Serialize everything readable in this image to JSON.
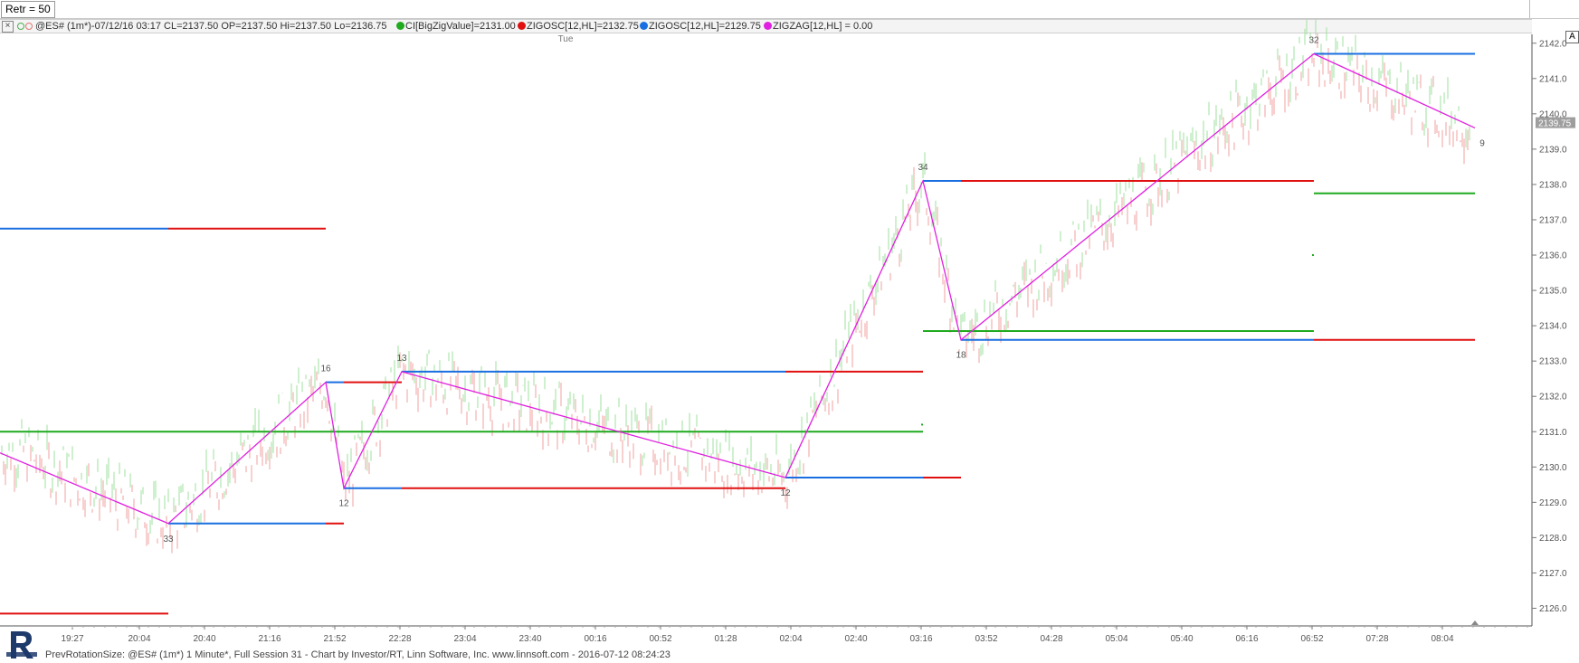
{
  "top": {
    "retr_label": "Retr = 50"
  },
  "legend": {
    "symbol": "@ES# (1m*)-07/12/16 03:17 CL=2137.50 OP=2137.50 Hi=2137.50 Lo=2136.75",
    "items": [
      {
        "text": "CI[BigZigValue]=2131.00",
        "color": "#1faa1f"
      },
      {
        "text": "ZIGOSC[12,HL]=2132.75",
        "color": "#e01010"
      },
      {
        "text": "ZIGOSC[12,HL]=2129.75",
        "color": "#1a6fe0"
      },
      {
        "text": "ZIGZAG[12,HL] = 0.00",
        "color": "#e020e0"
      }
    ]
  },
  "day_label": "Tue",
  "a_button": "A",
  "footer": "PrevRotationSize: @ES# (1m*) 1 Minute*, Full Session 31 - Chart by Investor/RT, Linn Software, Inc. www.linnsoft.com - 2016-07-12 08:24:23",
  "chart_data": {
    "type": "line",
    "ylim": [
      2125.5,
      2142.25
    ],
    "y_ticks": [
      2126.0,
      2127.0,
      2128.0,
      2129.0,
      2130.0,
      2131.0,
      2132.0,
      2133.0,
      2134.0,
      2135.0,
      2136.0,
      2137.0,
      2138.0,
      2139.0,
      2140.0,
      2141.0,
      2142.0
    ],
    "current_price": "2139.75",
    "x_ticks": [
      "19:27",
      "20:04",
      "20:40",
      "21:16",
      "21:52",
      "22:28",
      "23:04",
      "23:40",
      "00:16",
      "00:52",
      "01:28",
      "02:04",
      "02:40",
      "03:16",
      "03:52",
      "04:28",
      "05:04",
      "05:40",
      "06:16",
      "06:52",
      "07:28",
      "08:04"
    ],
    "series": [
      {
        "name": "ZIGZAG[12,HL]",
        "color": "#e020e0",
        "points": [
          [
            "19:00",
            2130.4
          ],
          [
            "20:20",
            2128.4
          ],
          [
            "21:47",
            2132.4
          ],
          [
            "21:57",
            2129.4
          ],
          [
            "22:29",
            2132.7
          ],
          [
            "02:01",
            2129.7
          ],
          [
            "03:17",
            2138.1
          ],
          [
            "03:38",
            2133.6
          ],
          [
            "06:53",
            2141.7
          ],
          [
            "08:22",
            2139.6
          ]
        ]
      },
      {
        "name": "CI[BigZigValue]",
        "color": "#1faa1f",
        "level": 2131.0
      }
    ],
    "pivot_labels": [
      {
        "x": "20:20",
        "y": 2128.4,
        "text": "33"
      },
      {
        "x": "21:47",
        "y": 2132.4,
        "text": "16"
      },
      {
        "x": "21:57",
        "y": 2129.4,
        "text": "12"
      },
      {
        "x": "22:29",
        "y": 2132.7,
        "text": "13"
      },
      {
        "x": "02:01",
        "y": 2129.7,
        "text": "12"
      },
      {
        "x": "03:17",
        "y": 2138.1,
        "text": "34"
      },
      {
        "x": "03:38",
        "y": 2133.6,
        "text": "18"
      },
      {
        "x": "06:53",
        "y": 2141.7,
        "text": "32"
      },
      {
        "x": "08:22",
        "y": 2139.6,
        "text": "9"
      }
    ],
    "levels": [
      {
        "color": "#1a6fe0",
        "y": 2136.75,
        "from": "19:00",
        "to": "20:20"
      },
      {
        "color": "#e01010",
        "y": 2136.75,
        "from": "20:20",
        "to": "21:47"
      },
      {
        "color": "#e01010",
        "y": 2125.85,
        "from": "19:00",
        "to": "20:20"
      },
      {
        "color": "#1a6fe0",
        "y": 2128.4,
        "from": "20:20",
        "to": "21:47"
      },
      {
        "color": "#e01010",
        "y": 2128.4,
        "from": "21:47",
        "to": "21:57"
      },
      {
        "color": "#1a6fe0",
        "y": 2132.4,
        "from": "21:47",
        "to": "21:57"
      },
      {
        "color": "#e01010",
        "y": 2132.4,
        "from": "21:57",
        "to": "22:29"
      },
      {
        "color": "#1a6fe0",
        "y": 2129.4,
        "from": "21:57",
        "to": "22:29"
      },
      {
        "color": "#e01010",
        "y": 2129.4,
        "from": "22:29",
        "to": "02:01"
      },
      {
        "color": "#1a6fe0",
        "y": 2132.7,
        "from": "22:29",
        "to": "02:01"
      },
      {
        "color": "#e01010",
        "y": 2132.7,
        "from": "02:01",
        "to": "03:17"
      },
      {
        "color": "#1a6fe0",
        "y": 2129.7,
        "from": "02:01",
        "to": "03:17"
      },
      {
        "color": "#e01010",
        "y": 2129.7,
        "from": "03:17",
        "to": "03:38"
      },
      {
        "color": "#1a6fe0",
        "y": 2138.1,
        "from": "03:17",
        "to": "03:38"
      },
      {
        "color": "#e01010",
        "y": 2138.1,
        "from": "03:38",
        "to": "06:53"
      },
      {
        "color": "#1a6fe0",
        "y": 2133.6,
        "from": "03:38",
        "to": "06:53"
      },
      {
        "color": "#1faa1f",
        "y": 2133.85,
        "from": "03:17",
        "to": "06:53"
      },
      {
        "color": "#e01010",
        "y": 2133.6,
        "from": "06:53",
        "to": "08:22"
      },
      {
        "color": "#1a6fe0",
        "y": 2141.7,
        "from": "06:53",
        "to": "08:22"
      },
      {
        "color": "#1faa1f",
        "y": 2137.75,
        "from": "06:53",
        "to": "08:22"
      },
      {
        "color": "#1faa1f",
        "y": 2131.0,
        "from": "19:00",
        "to": "03:17"
      }
    ],
    "grid": false
  }
}
